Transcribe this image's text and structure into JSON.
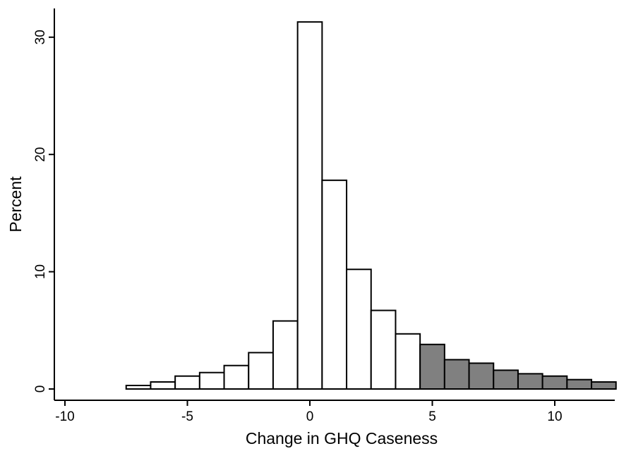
{
  "chart_data": {
    "type": "bar",
    "xlabel": "Change in GHQ Caseness",
    "ylabel": "Percent",
    "xlim": [
      -10,
      12.5
    ],
    "ylim": [
      0,
      32
    ],
    "xticks": [
      -10,
      -5,
      0,
      5,
      10
    ],
    "yticks": [
      0,
      10,
      20,
      30
    ],
    "grid": false,
    "bin_width": 1,
    "bars": [
      {
        "x": -7,
        "value": 0.3,
        "shaded": false
      },
      {
        "x": -6,
        "value": 0.6,
        "shaded": false
      },
      {
        "x": -5,
        "value": 1.1,
        "shaded": false
      },
      {
        "x": -4,
        "value": 1.4,
        "shaded": false
      },
      {
        "x": -3,
        "value": 2.0,
        "shaded": false
      },
      {
        "x": -2,
        "value": 3.1,
        "shaded": false
      },
      {
        "x": -1,
        "value": 5.8,
        "shaded": false
      },
      {
        "x": 0,
        "value": 31.3,
        "shaded": false
      },
      {
        "x": 1,
        "value": 17.8,
        "shaded": false
      },
      {
        "x": 2,
        "value": 10.2,
        "shaded": false
      },
      {
        "x": 3,
        "value": 6.7,
        "shaded": false
      },
      {
        "x": 4,
        "value": 4.7,
        "shaded": false
      },
      {
        "x": 5,
        "value": 3.8,
        "shaded": true
      },
      {
        "x": 6,
        "value": 2.5,
        "shaded": true
      },
      {
        "x": 7,
        "value": 2.2,
        "shaded": true
      },
      {
        "x": 8,
        "value": 1.6,
        "shaded": true
      },
      {
        "x": 9,
        "value": 1.3,
        "shaded": true
      },
      {
        "x": 10,
        "value": 1.1,
        "shaded": true
      },
      {
        "x": 11,
        "value": 0.8,
        "shaded": true
      },
      {
        "x": 12,
        "value": 0.6,
        "shaded": true
      }
    ],
    "colors": {
      "unshaded_fill": "#ffffff",
      "shaded_fill": "#808080",
      "bar_stroke": "#000000",
      "axis": "#000000"
    }
  }
}
